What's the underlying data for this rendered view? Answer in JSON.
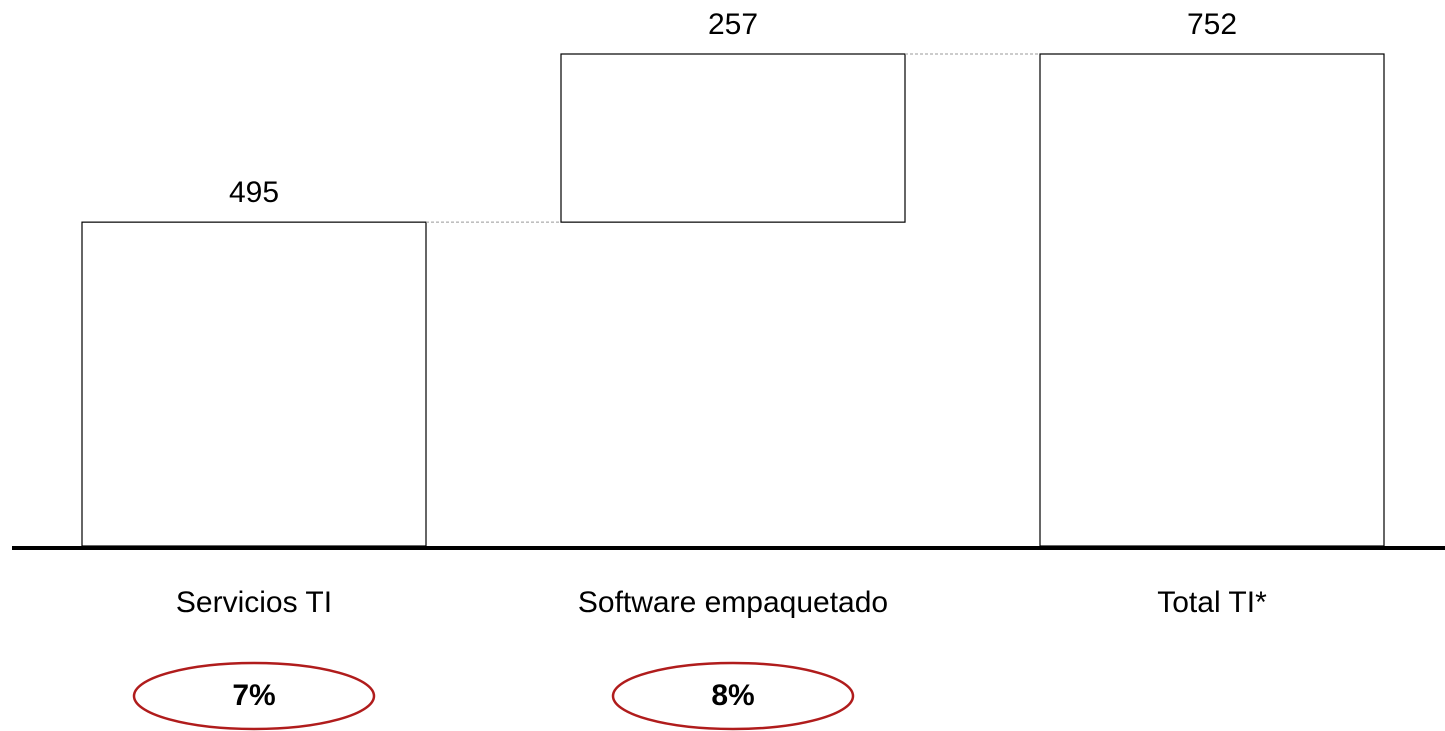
{
  "chart_data": {
    "type": "waterfall",
    "categories": [
      "Servicios TI",
      "Software empaquetado",
      "Total TI*"
    ],
    "values": [
      495,
      257,
      752
    ],
    "color": "#ffffff",
    "annotations": [
      "7%",
      "8%"
    ]
  }
}
